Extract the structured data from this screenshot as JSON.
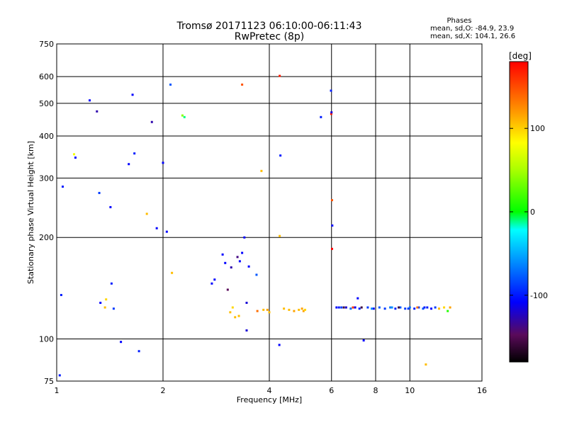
{
  "chart_data": {
    "type": "scatter",
    "title": "Tromsø 20171123 06:10:00-06:11:43",
    "subtitle": "RwPretec (8p)",
    "xlabel": "Frequency [MHz]",
    "ylabel": "Stationary phase Virtual Height [km]",
    "x_scale": "log",
    "y_scale": "log",
    "xlim": [
      1,
      16
    ],
    "ylim": [
      75,
      750
    ],
    "x_ticks": [
      1,
      2,
      4,
      6,
      8,
      10,
      16
    ],
    "y_ticks": [
      75,
      100,
      200,
      300,
      400,
      500,
      600,
      750
    ],
    "grid": true,
    "stats": {
      "heading": "Phases",
      "o_line": "mean, sd,O: -84.9, 23.9",
      "x_line": "mean, sd,X: 104.1, 26.6"
    },
    "colorbar": {
      "label": "[deg]",
      "range": [
        -180,
        180
      ],
      "ticks": [
        100,
        0,
        -100
      ]
    },
    "points": [
      [
        1.02,
        78,
        -100
      ],
      [
        1.03,
        135,
        -100
      ],
      [
        1.04,
        283,
        -100
      ],
      [
        1.12,
        353,
        80
      ],
      [
        1.13,
        345,
        -110
      ],
      [
        1.24,
        510,
        -110
      ],
      [
        1.3,
        473,
        -130
      ],
      [
        1.32,
        271,
        -90
      ],
      [
        1.33,
        128,
        -110
      ],
      [
        1.37,
        124,
        110
      ],
      [
        1.38,
        131,
        100
      ],
      [
        1.42,
        246,
        -110
      ],
      [
        1.43,
        146,
        -100
      ],
      [
        1.45,
        123,
        -90
      ],
      [
        1.52,
        98,
        -110
      ],
      [
        1.6,
        330,
        -110
      ],
      [
        1.64,
        530,
        -110
      ],
      [
        1.66,
        355,
        -100
      ],
      [
        1.71,
        92,
        -100
      ],
      [
        1.86,
        440,
        -130
      ],
      [
        1.8,
        235,
        110
      ],
      [
        1.92,
        213,
        -110
      ],
      [
        2.0,
        333,
        -110
      ],
      [
        2.05,
        208,
        -110
      ],
      [
        2.1,
        568,
        -80
      ],
      [
        2.12,
        157,
        110
      ],
      [
        2.3,
        455,
        -10
      ],
      [
        2.27,
        460,
        40
      ],
      [
        3.35,
        568,
        150
      ],
      [
        3.8,
        315,
        110
      ],
      [
        4.28,
        603,
        170
      ],
      [
        4.3,
        350,
        -100
      ],
      [
        4.28,
        202,
        110
      ],
      [
        4.27,
        96,
        -110
      ],
      [
        5.6,
        455,
        -100
      ],
      [
        5.98,
        545,
        -100
      ],
      [
        5.99,
        465,
        170
      ],
      [
        6.02,
        258,
        150
      ],
      [
        6.03,
        217,
        -110
      ],
      [
        6.02,
        185,
        180
      ],
      [
        6.0,
        470,
        -120
      ],
      [
        3.4,
        200,
        -110
      ],
      [
        3.45,
        128,
        -120
      ],
      [
        3.45,
        106,
        -120
      ],
      [
        3.68,
        155,
        -80
      ],
      [
        7.12,
        132,
        -110
      ],
      [
        7.4,
        99,
        -110
      ],
      [
        11.1,
        84,
        110
      ],
      [
        3.1,
        120,
        110
      ],
      [
        3.2,
        116,
        110
      ],
      [
        3.28,
        117,
        110
      ],
      [
        3.15,
        124,
        100
      ],
      [
        3.95,
        122,
        120
      ],
      [
        4.0,
        120,
        110
      ],
      [
        3.7,
        121,
        140
      ],
      [
        3.85,
        122,
        110
      ],
      [
        4.4,
        123,
        110
      ],
      [
        4.55,
        122,
        110
      ],
      [
        4.7,
        121,
        120
      ],
      [
        4.85,
        122,
        110
      ],
      [
        5.0,
        121,
        120
      ],
      [
        4.95,
        123,
        120
      ],
      [
        5.05,
        122,
        100
      ],
      [
        6.2,
        124,
        -110
      ],
      [
        6.4,
        124,
        -90
      ],
      [
        6.6,
        124,
        -120
      ],
      [
        6.8,
        123,
        -70
      ],
      [
        7.0,
        124,
        -110
      ],
      [
        7.2,
        123,
        -100
      ],
      [
        7.6,
        124,
        -90
      ],
      [
        7.9,
        123,
        -110
      ],
      [
        8.2,
        124,
        -80
      ],
      [
        8.5,
        123,
        -90
      ],
      [
        8.8,
        124,
        -70
      ],
      [
        9.1,
        123,
        -100
      ],
      [
        9.4,
        124,
        -80
      ],
      [
        9.7,
        123,
        -90
      ],
      [
        10.0,
        124,
        -70
      ],
      [
        10.3,
        123,
        -100
      ],
      [
        10.6,
        124,
        -90
      ],
      [
        10.9,
        123,
        -80
      ],
      [
        11.2,
        124,
        -100
      ],
      [
        11.5,
        123,
        -110
      ],
      [
        11.8,
        124,
        -90
      ],
      [
        12.1,
        123,
        110
      ],
      [
        12.5,
        124,
        100
      ],
      [
        13.0,
        124,
        120
      ],
      [
        12.8,
        121,
        10
      ],
      [
        6.5,
        124,
        -160
      ],
      [
        6.9,
        124,
        160
      ],
      [
        7.3,
        124,
        -160
      ],
      [
        9.3,
        124,
        -160
      ],
      [
        10.5,
        124,
        140
      ],
      [
        6.3,
        124,
        -100
      ],
      [
        7.8,
        123,
        -60
      ],
      [
        8.9,
        124,
        -60
      ],
      [
        9.9,
        123,
        -90
      ],
      [
        11.0,
        124,
        -100
      ],
      [
        3.0,
        168,
        -110
      ],
      [
        3.12,
        163,
        -130
      ],
      [
        3.25,
        175,
        -140
      ],
      [
        3.3,
        170,
        -110
      ],
      [
        3.5,
        164,
        -110
      ],
      [
        3.35,
        180,
        -110
      ],
      [
        2.95,
        178,
        -110
      ],
      [
        2.8,
        150,
        -110
      ],
      [
        2.75,
        146,
        -110
      ],
      [
        3.05,
        140,
        -150
      ]
    ]
  }
}
